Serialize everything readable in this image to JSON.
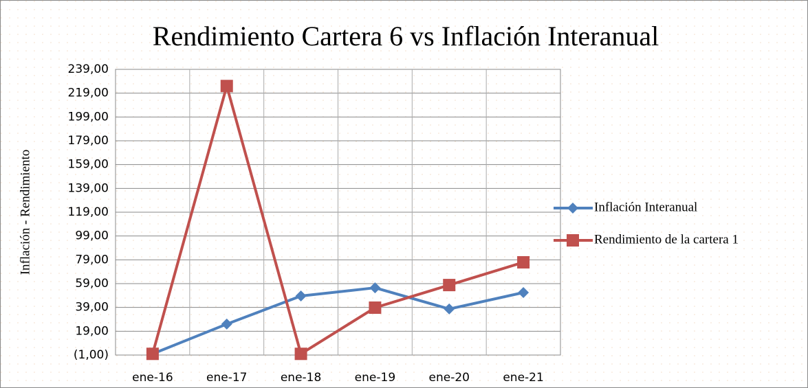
{
  "chart_data": {
    "type": "line",
    "title": "Rendimiento Cartera 6 vs Inflación Interanual",
    "y_label": "Inflación - Rendimiento",
    "categories": [
      "ene-16",
      "ene-17",
      "ene-18",
      "ene-19",
      "ene-20",
      "ene-21"
    ],
    "series": [
      {
        "name": "Inflación Interanual",
        "color": "#4f81bd",
        "marker": "diamond",
        "values": [
          0,
          25,
          48.6,
          55.5,
          37.7,
          51.5
        ]
      },
      {
        "name": "Rendimiento de la cartera 1",
        "color": "#c0504d",
        "marker": "square",
        "values": [
          0,
          225,
          0,
          38.8,
          57.8,
          76.9
        ]
      }
    ],
    "ylim": [
      -1,
      239
    ],
    "yticks": [
      {
        "value": -1,
        "label": "(1,00)"
      },
      {
        "value": 19,
        "label": "19,00"
      },
      {
        "value": 39,
        "label": "39,00"
      },
      {
        "value": 59,
        "label": "59,00"
      },
      {
        "value": 79,
        "label": "79,00"
      },
      {
        "value": 99,
        "label": "99,00"
      },
      {
        "value": 119,
        "label": "119,00"
      },
      {
        "value": 139,
        "label": "139,00"
      },
      {
        "value": 159,
        "label": "159,00"
      },
      {
        "value": 179,
        "label": "179,00"
      },
      {
        "value": 199,
        "label": "199,00"
      },
      {
        "value": 219,
        "label": "219,00"
      },
      {
        "value": 239,
        "label": "239,00"
      }
    ],
    "grid": true,
    "legend": "right"
  }
}
